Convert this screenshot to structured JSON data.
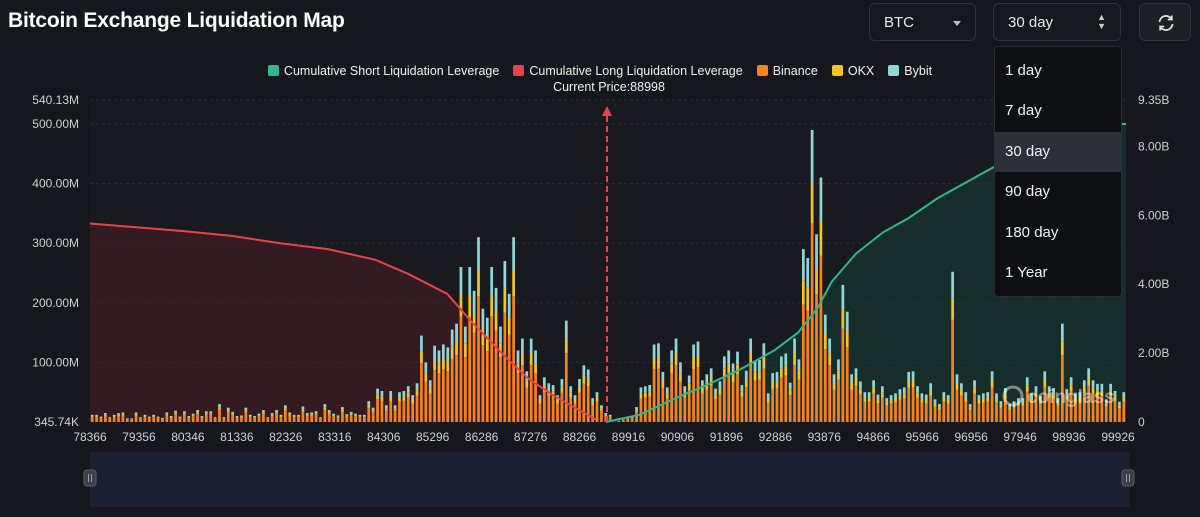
{
  "header": {
    "title": "Bitcoin Exchange Liquidation Map",
    "coin_select": "BTC",
    "range_select": "30 day",
    "refresh_icon": "refresh-icon"
  },
  "dropdown": {
    "options": [
      "1 day",
      "7 day",
      "30 day",
      "90 day",
      "180 day",
      "1 Year"
    ],
    "selected": "30 day"
  },
  "colors": {
    "short": "#2fb693",
    "long": "#e8434b",
    "binance": "#f7821b",
    "okx": "#f4c425",
    "bybit": "#8fd6d6",
    "background": "#15171c"
  },
  "watermark": "coinglass",
  "chart_data": {
    "type": "bar",
    "title": "Bitcoin Exchange Liquidation Map",
    "current_price": 88998,
    "current_price_label": "Current Price:88998",
    "legend": [
      "Cumulative Short Liquidation Leverage",
      "Cumulative Long Liquidation Leverage",
      "Binance",
      "OKX",
      "Bybit"
    ],
    "x_ticks": [
      "78366",
      "79356",
      "80346",
      "81336",
      "82326",
      "83316",
      "84306",
      "85296",
      "86286",
      "87276",
      "88266",
      "89916",
      "90906",
      "91896",
      "92886",
      "93876",
      "94866",
      "95966",
      "96956",
      "97946",
      "98936",
      "99926"
    ],
    "x_range": [
      78366,
      99926
    ],
    "y_left": {
      "ticks": [
        "540.13M",
        "500.00M",
        "400.00M",
        "300.00M",
        "200.00M",
        "100.00M",
        "345.74K"
      ],
      "range_millions": [
        0,
        540.13
      ]
    },
    "y_right": {
      "ticks": [
        "9.35B",
        "8.00B",
        "6.00B",
        "4.00B",
        "2.00B",
        "0"
      ],
      "range_billions": [
        0,
        9.35
      ]
    },
    "bar_totals_millions": [
      12,
      12,
      9,
      15,
      8,
      12,
      15,
      16,
      6,
      6,
      16,
      8,
      12,
      9,
      12,
      9,
      7,
      16,
      10,
      19,
      9,
      18,
      10,
      14,
      20,
      10,
      18,
      18,
      8,
      30,
      8,
      24,
      17,
      10,
      11,
      24,
      12,
      10,
      14,
      20,
      8,
      15,
      20,
      12,
      28,
      16,
      12,
      12,
      26,
      15,
      16,
      18,
      8,
      30,
      20,
      14,
      11,
      25,
      13,
      17,
      14,
      12,
      12,
      35,
      24,
      56,
      52,
      28,
      52,
      28,
      50,
      52,
      60,
      45,
      65,
      145,
      100,
      70,
      128,
      120,
      130,
      125,
      155,
      165,
      260,
      160,
      260,
      220,
      310,
      190,
      175,
      260,
      225,
      160,
      270,
      215,
      310,
      120,
      140,
      85,
      140,
      120,
      45,
      75,
      65,
      62,
      45,
      72,
      170,
      60,
      45,
      72,
      95,
      88,
      40,
      50,
      28,
      15,
      12,
      0,
      2,
      4,
      8,
      10,
      25,
      58,
      60,
      62,
      130,
      132,
      84,
      58,
      120,
      140,
      100,
      60,
      78,
      130,
      135,
      70,
      80,
      90,
      56,
      68,
      110,
      120,
      98,
      118,
      62,
      86,
      140,
      102,
      104,
      132,
      48,
      82,
      84,
      110,
      115,
      66,
      140,
      105,
      290,
      275,
      490,
      315,
      410,
      180,
      140,
      80,
      105,
      230,
      185,
      80,
      90,
      68,
      50,
      50,
      70,
      46,
      60,
      40,
      45,
      48,
      55,
      58,
      84,
      85,
      60,
      48,
      46,
      65,
      38,
      30,
      50,
      45,
      252,
      80,
      65,
      50,
      30,
      70,
      45,
      48,
      50,
      85,
      48,
      35,
      57,
      30,
      35,
      40,
      40,
      75,
      48,
      60,
      44,
      85,
      60,
      57,
      40,
      165,
      55,
      75,
      48,
      50,
      70,
      90,
      70,
      64,
      64,
      38,
      64,
      52,
      34,
      50
    ],
    "bar_mix": {
      "binance": 0.68,
      "okx": 0.14,
      "bybit": 0.18
    },
    "long_cumulative_millions": [
      [
        78366,
        333
      ],
      [
        80346,
        320
      ],
      [
        81336,
        312
      ],
      [
        82326,
        300
      ],
      [
        83316,
        290
      ],
      [
        84306,
        272
      ],
      [
        85000,
        248
      ],
      [
        85800,
        215
      ],
      [
        86286,
        170
      ],
      [
        87000,
        110
      ],
      [
        87500,
        72
      ],
      [
        88000,
        45
      ],
      [
        88500,
        22
      ],
      [
        88900,
        4
      ]
    ],
    "short_cumulative_millions": [
      [
        89100,
        0
      ],
      [
        89800,
        12
      ],
      [
        90500,
        38
      ],
      [
        91200,
        62
      ],
      [
        91896,
        88
      ],
      [
        92600,
        120
      ],
      [
        93100,
        150
      ],
      [
        93500,
        190
      ],
      [
        93800,
        235
      ],
      [
        94300,
        282
      ],
      [
        94866,
        318
      ],
      [
        95400,
        342
      ],
      [
        96000,
        375
      ],
      [
        97000,
        420
      ],
      [
        97700,
        450
      ],
      [
        98300,
        478
      ],
      [
        99000,
        497
      ],
      [
        99926,
        500
      ]
    ]
  }
}
